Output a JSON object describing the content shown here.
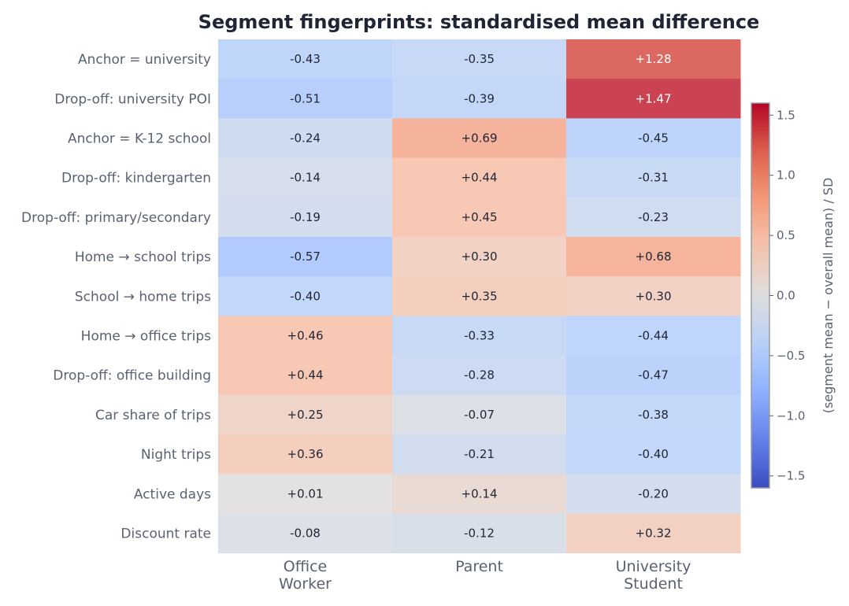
{
  "chart_data": {
    "type": "heatmap",
    "title": "Segment fingerprints: standardised mean difference",
    "columns": [
      [
        "Office",
        "Worker"
      ],
      [
        "Parent"
      ],
      [
        "University",
        "Student"
      ]
    ],
    "rows": [
      "Anchor = university",
      "Drop-off: university POI",
      "Anchor = K-12 school",
      "Drop-off: kindergarten",
      "Drop-off: primary/secondary",
      "Home → school trips",
      "School → home trips",
      "Home → office trips",
      "Drop-off: office building",
      "Car share of trips",
      "Night trips",
      "Active days",
      "Discount rate"
    ],
    "values": [
      [
        -0.43,
        -0.35,
        1.28
      ],
      [
        -0.51,
        -0.39,
        1.47
      ],
      [
        -0.24,
        0.69,
        -0.45
      ],
      [
        -0.14,
        0.44,
        -0.31
      ],
      [
        -0.19,
        0.45,
        -0.23
      ],
      [
        -0.57,
        0.3,
        0.68
      ],
      [
        -0.4,
        0.35,
        0.3
      ],
      [
        0.46,
        -0.33,
        -0.44
      ],
      [
        0.44,
        -0.28,
        -0.47
      ],
      [
        0.25,
        -0.07,
        -0.38
      ],
      [
        0.36,
        -0.21,
        -0.4
      ],
      [
        0.01,
        0.14,
        -0.2
      ],
      [
        -0.08,
        -0.12,
        0.32
      ]
    ],
    "labels": [
      [
        "-0.43",
        "-0.35",
        "+1.28"
      ],
      [
        "-0.51",
        "-0.39",
        "+1.47"
      ],
      [
        "-0.24",
        "+0.69",
        "-0.45"
      ],
      [
        "-0.14",
        "+0.44",
        "-0.31"
      ],
      [
        "-0.19",
        "+0.45",
        "-0.23"
      ],
      [
        "-0.57",
        "+0.30",
        "+0.68"
      ],
      [
        "-0.40",
        "+0.35",
        "+0.30"
      ],
      [
        "+0.46",
        "-0.33",
        "-0.44"
      ],
      [
        "+0.44",
        "-0.28",
        "-0.47"
      ],
      [
        "+0.25",
        "-0.07",
        "-0.38"
      ],
      [
        "+0.36",
        "-0.21",
        "-0.40"
      ],
      [
        "+0.01",
        "+0.14",
        "-0.20"
      ],
      [
        "-0.08",
        "-0.12",
        "+0.32"
      ]
    ],
    "colorbar": {
      "label": "(segment mean − overall mean) / SD",
      "vmin": -1.6,
      "vmax": 1.6,
      "colormap": "coolwarm",
      "ticks": [
        1.5,
        1.0,
        0.5,
        0.0,
        -0.5,
        -1.0,
        -1.5
      ],
      "tick_labels": [
        "1.5",
        "1.0",
        "0.5",
        "0.0",
        "−0.5",
        "−1.0",
        "−1.5"
      ]
    },
    "grid": false
  }
}
